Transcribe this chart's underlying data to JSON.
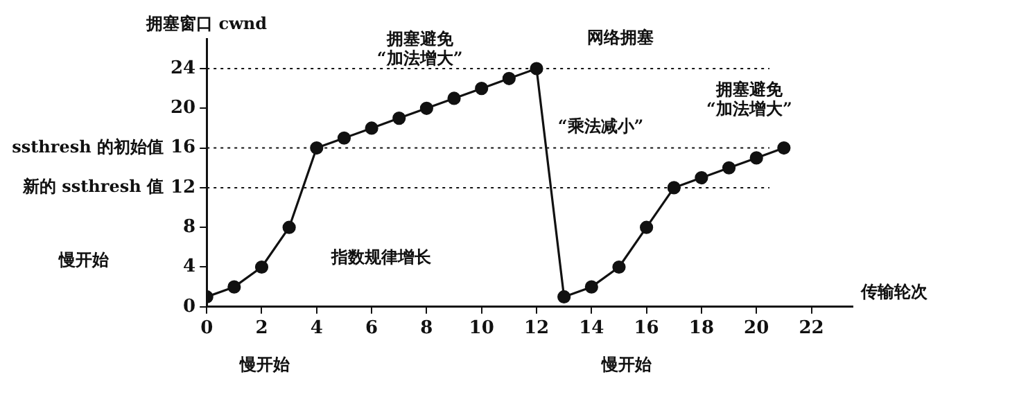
{
  "chart_data": {
    "type": "line",
    "ylabel": "拥塞窗口 cwnd",
    "xlabel": "传输轮次",
    "x": [
      0,
      1,
      2,
      3,
      4,
      5,
      6,
      7,
      8,
      9,
      10,
      11,
      12,
      13,
      14,
      15,
      16,
      17,
      18,
      19,
      20,
      21
    ],
    "series": [
      {
        "color": "#111111",
        "values": [
          1,
          2,
          4,
          8,
          16,
          17,
          18,
          19,
          20,
          21,
          22,
          23,
          24,
          1,
          2,
          4,
          8,
          12,
          13,
          14,
          15,
          16
        ]
      }
    ],
    "xlim": [
      0,
      23.5
    ],
    "xticks": [
      0,
      2,
      4,
      6,
      8,
      10,
      12,
      14,
      16,
      18,
      20,
      22
    ],
    "ylim": [
      0,
      27
    ],
    "yticks": [
      0,
      4,
      8,
      12,
      16,
      20,
      24
    ],
    "ref_lines": [
      {
        "axis": "y",
        "value": 24,
        "line_style": "dotted"
      },
      {
        "axis": "y",
        "value": 16,
        "label": "ssthresh 的初始值",
        "line_style": "dotted"
      },
      {
        "axis": "y",
        "value": 12,
        "label": "新的 ssthresh 值",
        "line_style": "dotted"
      }
    ],
    "annotations": [
      "拥塞避免\n“加法增大”",
      "网络拥塞",
      "“乘法减小”",
      "拥塞避免\n“加法增大”",
      "指数规律增长",
      "慢开始",
      "慢开始",
      "慢开始"
    ],
    "grid": false,
    "legend": false,
    "marker": "circle",
    "line_style": "solid"
  }
}
